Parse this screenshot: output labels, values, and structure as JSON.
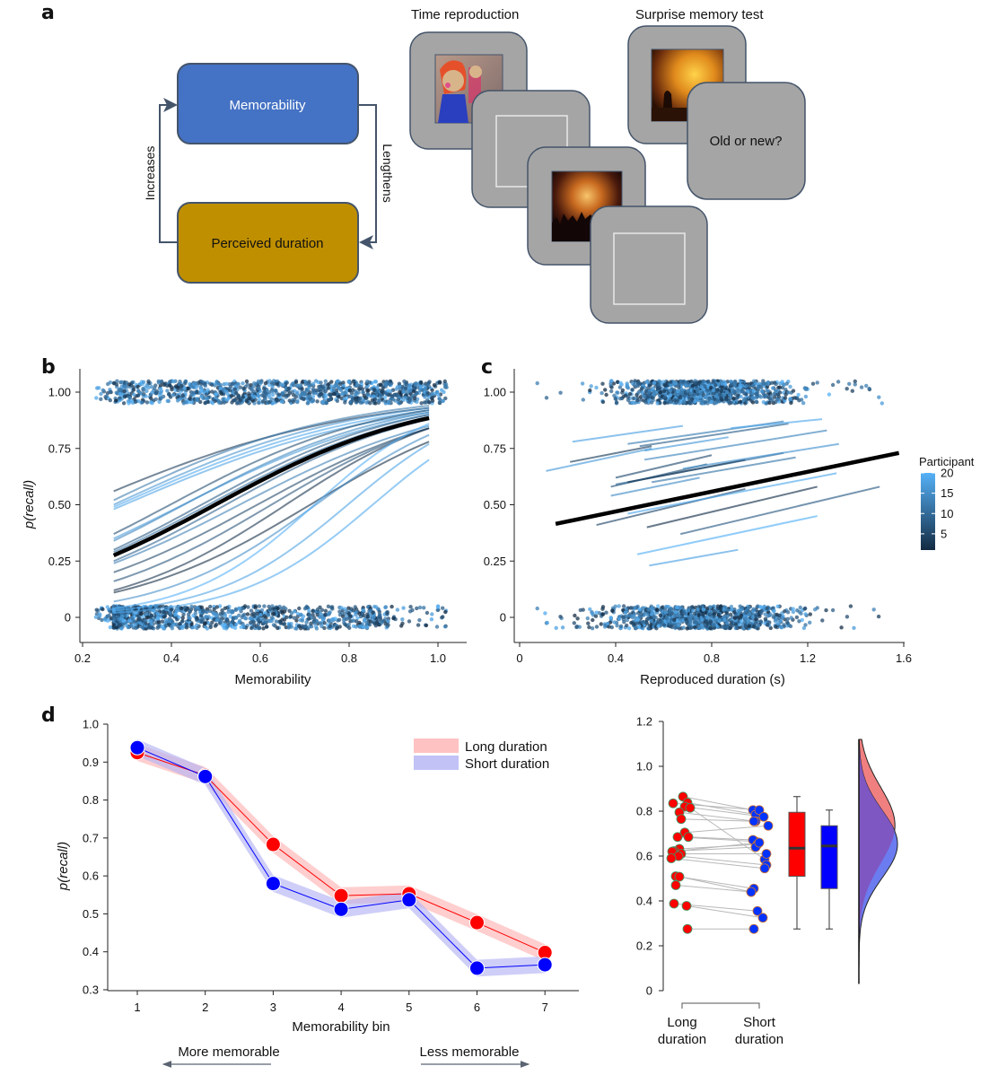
{
  "panels": {
    "a": {
      "letter": "a",
      "diagram": {
        "box_top": {
          "label": "Memorability",
          "color": "#4472c4",
          "text_color": "#ffffff"
        },
        "box_bottom": {
          "label": "Perceived duration",
          "color": "#bf8f00",
          "text_color": "#111111"
        },
        "arrow_left_label": "Increases",
        "arrow_right_label": "Lengthens",
        "stroke_color": "#44546a"
      },
      "task": {
        "time_reproduction_title": "Time reproduction",
        "surprise_test_title": "Surprise memory test",
        "old_or_new_label": "Old or new?",
        "card_color": "#a5a5a5",
        "card_border": "#44546a",
        "images": [
          "doll-photo",
          "concert-photo",
          "fire-silhouette-photo"
        ]
      }
    },
    "b": {
      "letter": "b"
    },
    "c": {
      "letter": "c"
    },
    "d": {
      "letter": "d"
    }
  },
  "chart_data": [
    {
      "id": "b",
      "type": "line",
      "xlabel": "Memorability",
      "ylabel": "p(recall)",
      "xlim": [
        0.2,
        1.0
      ],
      "ylim": [
        -0.05,
        1.05
      ],
      "xticks": [
        "0.2",
        "0.4",
        "0.6",
        "0.8",
        "1.0"
      ],
      "xtick_values": [
        0.2,
        0.4,
        0.6,
        0.8,
        1.0
      ],
      "yticks": [
        "0",
        "0.25",
        "0.50",
        "0.75",
        "1.00"
      ],
      "ytick_values": [
        0,
        0.25,
        0.5,
        0.75,
        1.0
      ],
      "x_range_curves": [
        0.27,
        0.98
      ],
      "group_curve": {
        "name": "Group fit",
        "start": 0.275,
        "end": 0.885,
        "color": "#000000"
      },
      "participant_curves": [
        {
          "start": 0.56,
          "end": 0.93,
          "participant": 3
        },
        {
          "start": 0.52,
          "end": 0.94,
          "participant": 12
        },
        {
          "start": 0.5,
          "end": 0.93,
          "participant": 16
        },
        {
          "start": 0.49,
          "end": 0.92,
          "participant": 19
        },
        {
          "start": 0.48,
          "end": 0.91,
          "participant": 18
        },
        {
          "start": 0.37,
          "end": 0.92,
          "participant": 6
        },
        {
          "start": 0.35,
          "end": 0.9,
          "participant": 17
        },
        {
          "start": 0.34,
          "end": 0.91,
          "participant": 14
        },
        {
          "start": 0.3,
          "end": 0.9,
          "participant": 8
        },
        {
          "start": 0.29,
          "end": 0.89,
          "participant": 11
        },
        {
          "start": 0.25,
          "end": 0.88,
          "participant": 9
        },
        {
          "start": 0.24,
          "end": 0.85,
          "participant": 13
        },
        {
          "start": 0.2,
          "end": 0.84,
          "participant": 5
        },
        {
          "start": 0.16,
          "end": 0.84,
          "participant": 7
        },
        {
          "start": 0.12,
          "end": 0.84,
          "participant": 2
        },
        {
          "start": 0.11,
          "end": 0.78,
          "participant": 1
        },
        {
          "start": 0.07,
          "end": 0.81,
          "participant": 15
        },
        {
          "start": 0.04,
          "end": 0.86,
          "participant": 20
        },
        {
          "start": 0.03,
          "end": 0.77,
          "participant": 18
        },
        {
          "start": 0.02,
          "end": 0.7,
          "participant": 19
        }
      ],
      "jitter_points": {
        "y_levels": [
          0,
          1
        ],
        "x_range": [
          0.23,
          1.02
        ],
        "note": "raw trials jittered around 0 and 1"
      }
    },
    {
      "id": "c",
      "type": "line",
      "xlabel": "Reproduced duration (s)",
      "ylabel": "",
      "xlim": [
        0,
        1.6
      ],
      "ylim": [
        -0.05,
        1.05
      ],
      "xticks": [
        "0",
        "0.4",
        "0.8",
        "1.2",
        "1.6"
      ],
      "xtick_values": [
        0,
        0.4,
        0.8,
        1.2,
        1.6
      ],
      "yticks": [
        "0",
        "0.25",
        "0.50",
        "0.75",
        "1.00"
      ],
      "ytick_values": [
        0,
        0.25,
        0.5,
        0.75,
        1.0
      ],
      "group_line": {
        "x0": 0.15,
        "y0": 0.415,
        "x1": 1.58,
        "y1": 0.73
      },
      "participant_lines": [
        {
          "x0": 0.22,
          "y0": 0.78,
          "x1": 0.68,
          "y1": 0.85,
          "participant": 18
        },
        {
          "x0": 0.45,
          "y0": 0.77,
          "x1": 1.1,
          "y1": 0.87,
          "participant": 13
        },
        {
          "x0": 0.5,
          "y0": 0.76,
          "x1": 1.12,
          "y1": 0.86,
          "participant": 9
        },
        {
          "x0": 0.52,
          "y0": 0.74,
          "x1": 0.87,
          "y1": 0.8,
          "participant": 17
        },
        {
          "x0": 0.88,
          "y0": 0.84,
          "x1": 1.26,
          "y1": 0.88,
          "participant": 19
        },
        {
          "x0": 0.52,
          "y0": 0.7,
          "x1": 1.28,
          "y1": 0.83,
          "participant": 14
        },
        {
          "x0": 0.21,
          "y0": 0.69,
          "x1": 0.55,
          "y1": 0.76,
          "participant": 4
        },
        {
          "x0": 0.11,
          "y0": 0.65,
          "x1": 0.55,
          "y1": 0.75,
          "participant": 17
        },
        {
          "x0": 0.4,
          "y0": 0.62,
          "x1": 0.8,
          "y1": 0.72,
          "participant": 6
        },
        {
          "x0": 0.38,
          "y0": 0.58,
          "x1": 0.78,
          "y1": 0.68,
          "participant": 7
        },
        {
          "x0": 0.4,
          "y0": 0.59,
          "x1": 1.1,
          "y1": 0.73,
          "participant": 10
        },
        {
          "x0": 0.45,
          "y0": 0.6,
          "x1": 0.94,
          "y1": 0.7,
          "participant": 3
        },
        {
          "x0": 0.55,
          "y0": 0.6,
          "x1": 1.15,
          "y1": 0.71,
          "participant": 12
        },
        {
          "x0": 0.68,
          "y0": 0.66,
          "x1": 1.33,
          "y1": 0.77,
          "participant": 16
        },
        {
          "x0": 0.38,
          "y0": 0.54,
          "x1": 0.75,
          "y1": 0.62,
          "participant": 15
        },
        {
          "x0": 0.32,
          "y0": 0.41,
          "x1": 0.94,
          "y1": 0.57,
          "participant": 5
        },
        {
          "x0": 0.45,
          "y0": 0.46,
          "x1": 1.32,
          "y1": 0.64,
          "participant": 19
        },
        {
          "x0": 0.53,
          "y0": 0.4,
          "x1": 1.24,
          "y1": 0.58,
          "participant": 2
        },
        {
          "x0": 0.67,
          "y0": 0.37,
          "x1": 1.5,
          "y1": 0.58,
          "participant": 8
        },
        {
          "x0": 0.49,
          "y0": 0.28,
          "x1": 1.24,
          "y1": 0.45,
          "participant": 20
        },
        {
          "x0": 0.54,
          "y0": 0.23,
          "x1": 0.91,
          "y1": 0.3,
          "participant": 18
        }
      ],
      "jitter_points": {
        "y_levels": [
          0,
          1
        ],
        "x_range": [
          0.07,
          1.52
        ]
      },
      "colorbar": {
        "title": "Participant",
        "ticks": [
          "5",
          "10",
          "15",
          "20"
        ],
        "tick_values": [
          5,
          10,
          15,
          20
        ],
        "range": [
          1,
          20
        ],
        "color_low": "#132b43",
        "color_high": "#56b1f7",
        "placement": "right"
      }
    },
    {
      "id": "d-left",
      "type": "line",
      "title": "",
      "xlabel": "Memorability bin",
      "ylabel": "p(recall)",
      "categories": [
        "1",
        "2",
        "3",
        "4",
        "5",
        "6",
        "7"
      ],
      "ylim": [
        0.3,
        1.0
      ],
      "yticks": [
        "0.3",
        "0.4",
        "0.5",
        "0.6",
        "0.7",
        "0.8",
        "0.9",
        "1.0"
      ],
      "ytick_values": [
        0.3,
        0.4,
        0.5,
        0.6,
        0.7,
        0.8,
        0.9,
        1.0
      ],
      "series": [
        {
          "name": "Long duration",
          "color": "#ff0000",
          "band_color": "#ffb3b3",
          "values": [
            0.925,
            0.865,
            0.683,
            0.548,
            0.553,
            0.477,
            0.398
          ],
          "band_halfwidth": 0.022
        },
        {
          "name": "Short duration",
          "color": "#0000ff",
          "band_color": "#b3b3f5",
          "values": [
            0.938,
            0.862,
            0.58,
            0.512,
            0.537,
            0.357,
            0.366
          ],
          "band_halfwidth": 0.022
        }
      ],
      "legend_placement": "top-right",
      "annotations": {
        "left": "More memorable",
        "right": "Less memorable"
      }
    },
    {
      "id": "d-right",
      "type": "scatter",
      "ylim": [
        0,
        1.2
      ],
      "yticks": [
        "0",
        "0.2",
        "0.4",
        "0.6",
        "0.8",
        "1.0",
        "1.2"
      ],
      "ytick_values": [
        0,
        0.2,
        0.4,
        0.6,
        0.8,
        1.0,
        1.2
      ],
      "categories": [
        "Long\nduration",
        "Short\nduration"
      ],
      "category_lines": [
        [
          "Long",
          "duration"
        ],
        [
          "Short",
          "duration"
        ]
      ],
      "paired_points": [
        {
          "long": 0.865,
          "short": 0.805
        },
        {
          "long": 0.838,
          "short": 0.785
        },
        {
          "long": 0.835,
          "short": 0.805
        },
        {
          "long": 0.82,
          "short": 0.775
        },
        {
          "long": 0.815,
          "short": 0.585
        },
        {
          "long": 0.795,
          "short": 0.755
        },
        {
          "long": 0.765,
          "short": 0.755
        },
        {
          "long": 0.705,
          "short": 0.735
        },
        {
          "long": 0.685,
          "short": 0.665
        },
        {
          "long": 0.685,
          "short": 0.672
        },
        {
          "long": 0.632,
          "short": 0.652
        },
        {
          "long": 0.622,
          "short": 0.64
        },
        {
          "long": 0.62,
          "short": 0.66
        },
        {
          "long": 0.61,
          "short": 0.61
        },
        {
          "long": 0.6,
          "short": 0.56
        },
        {
          "long": 0.59,
          "short": 0.545
        },
        {
          "long": 0.51,
          "short": 0.455
        },
        {
          "long": 0.508,
          "short": 0.44
        },
        {
          "long": 0.47,
          "short": 0.44
        },
        {
          "long": 0.388,
          "short": 0.355
        },
        {
          "long": 0.378,
          "short": 0.325
        },
        {
          "long": 0.275,
          "short": 0.275
        }
      ],
      "boxplots": [
        {
          "name": "Long duration",
          "color": "#ff0000",
          "min": 0.275,
          "q1": 0.51,
          "median": 0.635,
          "q3": 0.795,
          "max": 0.865
        },
        {
          "name": "Short duration",
          "color": "#0000ff",
          "min": 0.275,
          "q1": 0.455,
          "median": 0.645,
          "q3": 0.735,
          "max": 0.805
        }
      ],
      "density": {
        "long_color": "#f08080",
        "short_color": "#6b7cf0",
        "overlap_color": "#7e57c2",
        "y_range": [
          0.03,
          1.12
        ]
      }
    }
  ]
}
